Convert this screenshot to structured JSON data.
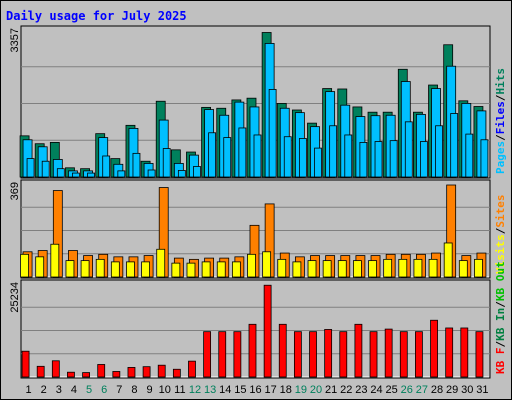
{
  "chart_data": {
    "type": "bar",
    "title": "Daily usage for July 2025",
    "colors": {
      "background": "#c0c0c0",
      "plot": "#c0c0c0",
      "hits": "#00805c",
      "files": "#00c0ff",
      "pages": "#00c0ff",
      "visits": "#ffff00",
      "sites": "#ff8000",
      "kbin": "#008040",
      "kbout": "#00c000",
      "kbf": "#ff0000",
      "title": "#0000ff",
      "weekend_tick": "#00805c",
      "weekday_tick": "#000000"
    },
    "x": [
      "1",
      "2",
      "3",
      "4",
      "5",
      "6",
      "7",
      "8",
      "9",
      "10",
      "11",
      "12",
      "13",
      "14",
      "15",
      "16",
      "17",
      "18",
      "19",
      "20",
      "21",
      "22",
      "23",
      "24",
      "25",
      "26",
      "27",
      "28",
      "29",
      "30",
      "31"
    ],
    "weekend_days": [
      "5",
      "6",
      "12",
      "13",
      "19",
      "20",
      "26",
      "27"
    ],
    "panels": [
      {
        "id": "requests",
        "ymax_label": "3357",
        "ylim": [
          0,
          3357
        ],
        "legend": [
          {
            "label": "Pages",
            "color": "#00c0ff"
          },
          {
            "label": "/",
            "color": "#000000"
          },
          {
            "label": "Files",
            "color": "#0000ff"
          },
          {
            "label": "/",
            "color": "#000000"
          },
          {
            "label": "Hits",
            "color": "#00805c"
          }
        ],
        "series": [
          {
            "name": "Hits",
            "values": [
              940,
              760,
              790,
              210,
              190,
              990,
              420,
              1180,
              360,
              1730,
              620,
              570,
              1590,
              1570,
              1760,
              1800,
              3300,
              1680,
              1530,
              1230,
              2020,
              2010,
              1600,
              1480,
              1480,
              2460,
              1480,
              2100,
              3020,
              1740,
              1610
            ]
          },
          {
            "name": "Files",
            "values": [
              850,
              690,
              400,
              140,
              140,
              900,
              290,
              1110,
              310,
              1300,
              310,
              500,
              1540,
              1410,
              1710,
              1600,
              3050,
              1570,
              1470,
              1150,
              1950,
              1640,
              1380,
              1400,
              1410,
              2180,
              1430,
              2020,
              2530,
              1680,
              1510
            ]
          },
          {
            "name": "Pages",
            "values": [
              420,
              360,
              190,
              90,
              90,
              480,
              140,
              540,
              160,
              650,
              150,
              240,
              1010,
              900,
              1120,
              960,
              2000,
              920,
              880,
              660,
              1170,
              960,
              790,
              810,
              830,
              1260,
              810,
              1170,
              1450,
              980,
              850
            ]
          }
        ]
      },
      {
        "id": "sites",
        "ymax_label": "369",
        "ylim": [
          0,
          369
        ],
        "legend": [
          {
            "label": "Visits",
            "color": "#ffff00"
          },
          {
            "label": "/",
            "color": "#000000"
          },
          {
            "label": "Sites",
            "color": "#ff8000"
          }
        ],
        "series": [
          {
            "name": "Sites",
            "values": [
              100,
              105,
              343,
              105,
              85,
              90,
              80,
              80,
              85,
              355,
              75,
              70,
              75,
              75,
              80,
              205,
              290,
              95,
              80,
              85,
              85,
              85,
              85,
              85,
              90,
              90,
              90,
              95,
              365,
              85,
              95
            ]
          },
          {
            "name": "Visits",
            "values": [
              90,
              80,
              130,
              65,
              65,
              70,
              60,
              60,
              60,
              110,
              55,
              55,
              60,
              60,
              60,
              90,
              100,
              70,
              60,
              65,
              65,
              65,
              65,
              65,
              70,
              70,
              70,
              70,
              135,
              65,
              70
            ]
          }
        ]
      },
      {
        "id": "kbytes",
        "ymax_label": "25234",
        "ylim": [
          0,
          25234
        ],
        "legend": [
          {
            "label": "KB F",
            "color": "#ff0000"
          },
          {
            "label": "/",
            "color": "#000000"
          },
          {
            "label": "KB In",
            "color": "#008040"
          },
          {
            "label": "/",
            "color": "#000000"
          },
          {
            "label": "KB Out",
            "color": "#00c000"
          }
        ],
        "series": [
          {
            "name": "KB F",
            "values": [
              7000,
              2900,
              4400,
              1300,
              1200,
              3400,
              1500,
              2600,
              2800,
              3200,
              2100,
              4300,
              12300,
              12300,
              12300,
              14300,
              24900,
              14300,
              12300,
              12300,
              12900,
              12300,
              14300,
              12300,
              13000,
              12300,
              12300,
              15400,
              13300,
              13300,
              12300
            ]
          }
        ]
      }
    ]
  }
}
